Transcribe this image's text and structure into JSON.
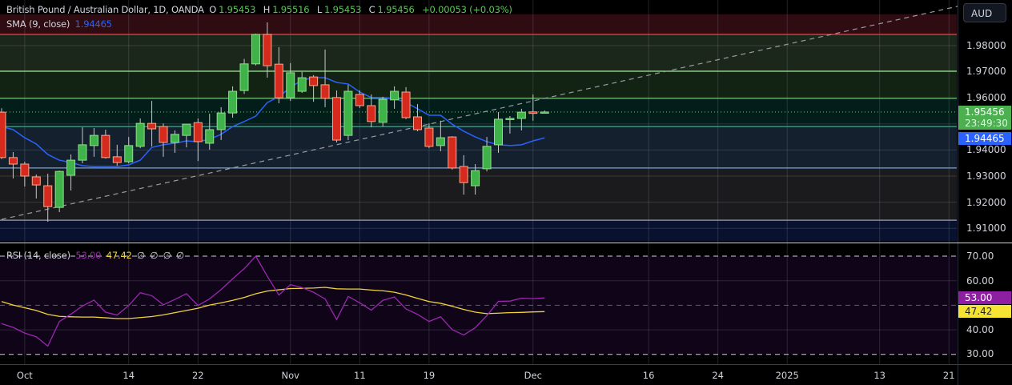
{
  "header": {
    "symbol": "British Pound / Australian Dollar, 1D, OANDA",
    "o_label": "O",
    "o": "1.95453",
    "h_label": "H",
    "h": "1.95516",
    "l_label": "L",
    "l": "1.95453",
    "c_label": "C",
    "c": "1.95456",
    "change": "+0.00053 (+0.03%)",
    "sma_label": "SMA (9, close)",
    "sma_value": "1.94465"
  },
  "rsi_legend": {
    "label": "RSI (14, close)",
    "rsi": "53.00",
    "ma": "47.42",
    "extras": [
      "∅",
      "∅",
      "∅",
      "∅"
    ]
  },
  "price_axis": {
    "currency": "AUD",
    "labels": [
      "1.98000",
      "1.97000",
      "1.96000",
      "1.94000",
      "1.93000",
      "1.92000",
      "1.91000"
    ],
    "last_price": "1.95456",
    "countdown": "23:49:30",
    "sma_badge": "1.94465"
  },
  "rsi_axis": {
    "labels": [
      "70.00",
      "60.00",
      "40.00",
      "30.00"
    ],
    "rsi_badge": "53.00",
    "ma_badge": "47.42"
  },
  "colors": {
    "up": "#3fb24a",
    "down": "#d62a1e",
    "sma": "#2962ff",
    "rsi": "#9c27b0",
    "rsi_ma": "#f2d33c",
    "last_price": "#4caf50"
  },
  "chart_data": [
    {
      "type": "candlestick",
      "title": "British Pound / Australian Dollar, 1D, OANDA",
      "ylim": [
        1.905,
        1.992
      ],
      "yticks": [
        1.91,
        1.92,
        1.93,
        1.94,
        1.95,
        1.96,
        1.97,
        1.98
      ],
      "xticks": [
        {
          "label": "Oct",
          "date": "2024-10-01"
        },
        {
          "label": "14",
          "date": "2024-10-14"
        },
        {
          "label": "22",
          "date": "2024-10-22"
        },
        {
          "label": "Nov",
          "date": "2024-11-01"
        },
        {
          "label": "11",
          "date": "2024-11-11"
        },
        {
          "label": "19",
          "date": "2024-11-19"
        },
        {
          "label": "Dec",
          "date": "2024-12-02"
        },
        {
          "label": "16",
          "date": "2024-12-16"
        },
        {
          "label": "24",
          "date": "2024-12-24"
        },
        {
          "label": "2025",
          "date": "2025-01-01"
        },
        {
          "label": "13",
          "date": "2025-01-13"
        },
        {
          "label": "21",
          "date": "2025-01-21"
        }
      ],
      "candles_fields": [
        "date",
        "open",
        "high",
        "low",
        "close"
      ],
      "candles": [
        [
          "2024-09-27",
          1.9545,
          1.956,
          1.9365,
          1.9371
        ],
        [
          "2024-09-30",
          1.9371,
          1.9392,
          1.9291,
          1.9346
        ],
        [
          "2024-10-01",
          1.9346,
          1.9355,
          1.926,
          1.93
        ],
        [
          "2024-10-02",
          1.9297,
          1.9306,
          1.9214,
          1.9266
        ],
        [
          "2024-10-03",
          1.9263,
          1.9309,
          1.9125,
          1.9183
        ],
        [
          "2024-10-04",
          1.918,
          1.9321,
          1.9162,
          1.9318
        ],
        [
          "2024-10-07",
          1.9303,
          1.9383,
          1.9245,
          1.9361
        ],
        [
          "2024-10-08",
          1.9361,
          1.9487,
          1.9349,
          1.942
        ],
        [
          "2024-10-09",
          1.9417,
          1.9484,
          1.9374,
          1.9456
        ],
        [
          "2024-10-10",
          1.9456,
          1.9478,
          1.9367,
          1.9371
        ],
        [
          "2024-10-11",
          1.9374,
          1.942,
          1.934,
          1.9352
        ],
        [
          "2024-10-14",
          1.9355,
          1.945,
          1.9349,
          1.9417
        ],
        [
          "2024-10-15",
          1.9414,
          1.9521,
          1.9407,
          1.9502
        ],
        [
          "2024-10-16",
          1.9502,
          1.9588,
          1.9414,
          1.9481
        ],
        [
          "2024-10-17",
          1.949,
          1.9502,
          1.9374,
          1.9429
        ],
        [
          "2024-10-18",
          1.9429,
          1.9475,
          1.9389,
          1.946
        ],
        [
          "2024-10-21",
          1.9456,
          1.9499,
          1.941,
          1.9499
        ],
        [
          "2024-10-22",
          1.9505,
          1.9521,
          1.9358,
          1.9432
        ],
        [
          "2024-10-23",
          1.9426,
          1.9539,
          1.9401,
          1.9478
        ],
        [
          "2024-10-24",
          1.9478,
          1.9564,
          1.9438,
          1.9542
        ],
        [
          "2024-10-25",
          1.9542,
          1.9644,
          1.9524,
          1.9625
        ],
        [
          "2024-10-28",
          1.9628,
          1.9749,
          1.9615,
          1.973
        ],
        [
          "2024-10-29",
          1.973,
          1.9846,
          1.9724,
          1.9843
        ],
        [
          "2024-10-30",
          1.9843,
          1.9889,
          1.9677,
          1.9723
        ],
        [
          "2024-10-31",
          1.9729,
          1.9794,
          1.9579,
          1.96
        ],
        [
          "2024-11-01",
          1.96,
          1.9733,
          1.9588,
          1.9696
        ],
        [
          "2024-11-04",
          1.9625,
          1.9699,
          1.9619,
          1.9677
        ],
        [
          "2024-11-05",
          1.968,
          1.9687,
          1.9585,
          1.9647
        ],
        [
          "2024-11-06",
          1.965,
          1.9785,
          1.9564,
          1.9598
        ],
        [
          "2024-11-07",
          1.9601,
          1.9628,
          1.9429,
          1.9438
        ],
        [
          "2024-11-08",
          1.9456,
          1.965,
          1.9438,
          1.9625
        ],
        [
          "2024-11-11",
          1.9613,
          1.9628,
          1.9561,
          1.957
        ],
        [
          "2024-11-12",
          1.957,
          1.9613,
          1.9487,
          1.9509
        ],
        [
          "2024-11-13",
          1.9506,
          1.9604,
          1.949,
          1.9594
        ],
        [
          "2024-11-14",
          1.9592,
          1.9644,
          1.9558,
          1.9625
        ],
        [
          "2024-11-15",
          1.9622,
          1.9641,
          1.9518,
          1.9524
        ],
        [
          "2024-11-18",
          1.9527,
          1.9576,
          1.9472,
          1.9478
        ],
        [
          "2024-11-19",
          1.9484,
          1.9502,
          1.9407,
          1.9414
        ],
        [
          "2024-11-20",
          1.9417,
          1.9512,
          1.9395,
          1.9447
        ],
        [
          "2024-11-21",
          1.945,
          1.9453,
          1.9325,
          1.9331
        ],
        [
          "2024-11-22",
          1.9337,
          1.938,
          1.9229,
          1.9275
        ],
        [
          "2024-11-25",
          1.9263,
          1.9346,
          1.9229,
          1.9321
        ],
        [
          "2024-11-26",
          1.9328,
          1.945,
          1.9318,
          1.9414
        ],
        [
          "2024-11-27",
          1.942,
          1.9545,
          1.9389,
          1.9518
        ],
        [
          "2024-11-28",
          1.9518,
          1.953,
          1.9463,
          1.9521
        ],
        [
          "2024-11-29",
          1.9521,
          1.9558,
          1.9475,
          1.9545
        ],
        [
          "2024-12-02",
          1.9546,
          1.9613,
          1.9512,
          1.95403
        ],
        [
          "2024-12-03",
          1.95453,
          1.95516,
          1.95453,
          1.95456
        ]
      ],
      "sma_9": [
        1.949,
        1.9478,
        1.9447,
        1.9423,
        1.9383,
        1.9361,
        1.9352,
        1.934,
        1.9337,
        1.9337,
        1.9337,
        1.9343,
        1.9361,
        1.941,
        1.942,
        1.9426,
        1.9435,
        1.9432,
        1.9441,
        1.946,
        1.949,
        1.9509,
        1.953,
        1.9582,
        1.9604,
        1.964,
        1.9668,
        1.9677,
        1.9677,
        1.9659,
        1.9653,
        1.9622,
        1.9601,
        1.9601,
        1.9598,
        1.9582,
        1.9558,
        1.9533,
        1.9533,
        1.9499,
        1.9472,
        1.945,
        1.9432,
        1.942,
        1.9417,
        1.942,
        1.9435,
        1.94465
      ],
      "levels": [
        {
          "price": 1.9843,
          "color": "#e0484e"
        },
        {
          "price": 1.9702,
          "color": "#8fd48a"
        },
        {
          "price": 1.9598,
          "color": "#6cc46a"
        },
        {
          "price": 1.949,
          "color": "#3f9f8a"
        },
        {
          "price": 1.9331,
          "color": "#6ea6e0"
        },
        {
          "price": 1.9131,
          "color": "#9aa0b0"
        }
      ],
      "zones": [
        {
          "from": 1.9843,
          "to": 1.992,
          "color": "#2e0c12"
        },
        {
          "from": 1.9702,
          "to": 1.9843,
          "color": "#1c271c"
        },
        {
          "from": 1.9598,
          "to": 1.9702,
          "color": "#122213"
        },
        {
          "from": 1.949,
          "to": 1.9598,
          "color": "#031e1a"
        },
        {
          "from": 1.9331,
          "to": 1.949,
          "color": "#14202e"
        },
        {
          "from": 1.9131,
          "to": 1.9331,
          "color": "#1b1b1d"
        },
        {
          "from": 1.905,
          "to": 1.9131,
          "color": "#08122e"
        }
      ],
      "trendline": {
        "from": {
          "date": "2024-09-27",
          "price": 1.9134
        },
        "to": {
          "date": "2025-01-23",
          "price": 1.9963
        },
        "style": "dashed"
      }
    },
    {
      "type": "line",
      "title": "RSI (14, close)",
      "ylim": [
        25,
        75
      ],
      "yticks": [
        30,
        40,
        50,
        60,
        70
      ],
      "bands": [
        30,
        50,
        70
      ],
      "series": [
        {
          "name": "RSI",
          "values": [
            42.5,
            41.0,
            38.7,
            37.2,
            33.4,
            43.4,
            46.4,
            49.7,
            52.1,
            47.2,
            46.0,
            49.9,
            55.1,
            53.9,
            50.2,
            52.4,
            54.7,
            49.9,
            52.6,
            56.4,
            60.8,
            64.9,
            70.0,
            61.8,
            54.2,
            58.4,
            57.2,
            55.3,
            52.6,
            44.2,
            53.6,
            51.0,
            48.0,
            52.0,
            53.4,
            48.5,
            46.3,
            43.4,
            45.3,
            40.1,
            37.9,
            40.9,
            45.8,
            51.6,
            51.7,
            52.9,
            52.7,
            53.0
          ]
        },
        {
          "name": "RSI-based MA",
          "values": [
            51.5,
            50.1,
            49.0,
            47.9,
            46.3,
            45.5,
            45.3,
            45.2,
            45.2,
            44.9,
            44.6,
            44.6,
            45.0,
            45.4,
            46.1,
            47.0,
            47.9,
            48.8,
            50.1,
            51.0,
            52.0,
            53.2,
            54.7,
            55.8,
            56.3,
            56.8,
            56.9,
            57.0,
            57.3,
            56.7,
            56.6,
            56.6,
            56.2,
            55.9,
            55.3,
            54.2,
            52.8,
            51.5,
            50.8,
            49.6,
            48.3,
            47.2,
            46.6,
            46.8,
            47.0,
            47.1,
            47.3,
            47.42
          ]
        }
      ]
    }
  ]
}
